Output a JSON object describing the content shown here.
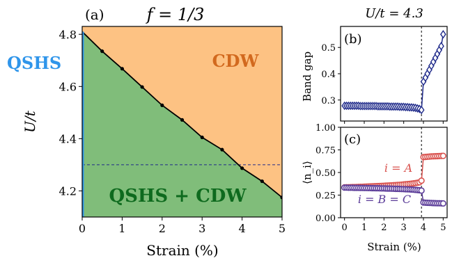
{
  "chart_data": [
    {
      "id": "a",
      "type": "area",
      "panel_label": "(a)",
      "title": "f = 1/3",
      "xlabel": "Strain (%)",
      "ylabel": "U/t",
      "xlim": [
        0,
        5
      ],
      "ylim": [
        4.1,
        4.83
      ],
      "x_ticks": [
        "0",
        "1",
        "2",
        "3",
        "4",
        "5"
      ],
      "y_ticks": [
        "4.2",
        "4.4",
        "4.6",
        "4.8"
      ],
      "boundary": {
        "x": [
          0,
          0.5,
          1.0,
          1.5,
          2.0,
          2.5,
          3.0,
          3.5,
          4.0,
          4.5,
          5.0
        ],
        "y": [
          4.81,
          4.735,
          4.668,
          4.598,
          4.528,
          4.472,
          4.405,
          4.358,
          4.287,
          4.237,
          4.175
        ]
      },
      "reference_line_y": 4.3,
      "qshs_edge": {
        "x": 0,
        "y_range": [
          4.1,
          4.81
        ]
      },
      "regions": {
        "upper": "CDW",
        "lower": "QSHS + CDW",
        "edge": "QSHS"
      },
      "colors": {
        "cdw": "#fdc283",
        "mix": "#80bd7a",
        "qshs": "#2f95ea",
        "cdw_text": "#d2691e",
        "mix_text": "#0e6a1e"
      }
    },
    {
      "id": "b",
      "type": "line",
      "panel_label": "(b)",
      "title": "U/t = 4.3",
      "ylabel": "Band gap",
      "xlim": [
        -0.2,
        5.2
      ],
      "ylim": [
        0.22,
        0.58
      ],
      "y_ticks": [
        "0.3",
        "0.4",
        "0.5"
      ],
      "transition_x": 3.9,
      "series": [
        {
          "x": [
            0,
            0.1,
            0.2,
            0.3,
            0.4,
            0.5,
            0.6,
            0.7,
            0.8,
            0.9,
            1.0,
            1.1,
            1.2,
            1.3,
            1.4,
            1.5,
            1.6,
            1.7,
            1.8,
            1.9,
            2.0,
            2.1,
            2.2,
            2.3,
            2.4,
            2.5,
            2.6,
            2.7,
            2.8,
            2.9,
            3.0,
            3.1,
            3.2,
            3.3,
            3.4,
            3.5,
            3.6,
            3.7,
            3.8,
            3.9,
            4.0,
            4.1,
            4.2,
            4.3,
            4.4,
            4.5,
            4.6,
            4.7,
            4.8,
            4.9,
            5.0
          ],
          "values": [
            0.278,
            0.278,
            0.278,
            0.278,
            0.278,
            0.278,
            0.278,
            0.278,
            0.277,
            0.277,
            0.277,
            0.277,
            0.277,
            0.277,
            0.277,
            0.277,
            0.277,
            0.276,
            0.276,
            0.276,
            0.276,
            0.276,
            0.276,
            0.275,
            0.275,
            0.275,
            0.275,
            0.275,
            0.274,
            0.274,
            0.274,
            0.273,
            0.273,
            0.272,
            0.272,
            0.271,
            0.27,
            0.268,
            0.266,
            0.262,
            0.37,
            0.385,
            0.4,
            0.415,
            0.43,
            0.445,
            0.46,
            0.475,
            0.49,
            0.505,
            0.55
          ],
          "color": "#1f2a8a"
        }
      ]
    },
    {
      "id": "c",
      "type": "scatter",
      "panel_label": "(c)",
      "xlabel": "Strain (%)",
      "ylabel": "⟨n_i⟩",
      "xlim": [
        -0.2,
        5.2
      ],
      "ylim": [
        0.0,
        1.0
      ],
      "x_ticks": [
        "0",
        "1",
        "2",
        "3",
        "4",
        "5"
      ],
      "y_ticks": [
        "0.00",
        "0.25",
        "0.50",
        "0.75",
        "1.00"
      ],
      "transition_x": 3.9,
      "series": [
        {
          "name": "i = A",
          "x": [
            0,
            0.1,
            0.2,
            0.3,
            0.4,
            0.5,
            0.6,
            0.7,
            0.8,
            0.9,
            1.0,
            1.1,
            1.2,
            1.3,
            1.4,
            1.5,
            1.6,
            1.7,
            1.8,
            1.9,
            2.0,
            2.1,
            2.2,
            2.3,
            2.4,
            2.5,
            2.6,
            2.7,
            2.8,
            2.9,
            3.0,
            3.1,
            3.2,
            3.3,
            3.4,
            3.5,
            3.6,
            3.7,
            3.8,
            3.9,
            4.0,
            4.1,
            4.2,
            4.3,
            4.4,
            4.5,
            4.6,
            4.7,
            4.8,
            4.9,
            5.0
          ],
          "values": [
            0.336,
            0.337,
            0.337,
            0.338,
            0.339,
            0.339,
            0.34,
            0.341,
            0.342,
            0.342,
            0.343,
            0.344,
            0.345,
            0.346,
            0.347,
            0.348,
            0.349,
            0.35,
            0.351,
            0.352,
            0.353,
            0.355,
            0.356,
            0.357,
            0.358,
            0.36,
            0.361,
            0.363,
            0.364,
            0.366,
            0.368,
            0.37,
            0.372,
            0.374,
            0.377,
            0.38,
            0.383,
            0.387,
            0.392,
            0.41,
            0.67,
            0.672,
            0.674,
            0.676,
            0.678,
            0.679,
            0.68,
            0.681,
            0.682,
            0.683,
            0.684
          ],
          "color": "#d9534f"
        },
        {
          "name": "i = B = C",
          "x": [
            0,
            0.1,
            0.2,
            0.3,
            0.4,
            0.5,
            0.6,
            0.7,
            0.8,
            0.9,
            1.0,
            1.1,
            1.2,
            1.3,
            1.4,
            1.5,
            1.6,
            1.7,
            1.8,
            1.9,
            2.0,
            2.1,
            2.2,
            2.3,
            2.4,
            2.5,
            2.6,
            2.7,
            2.8,
            2.9,
            3.0,
            3.1,
            3.2,
            3.3,
            3.4,
            3.5,
            3.6,
            3.7,
            3.8,
            3.9,
            4.0,
            4.1,
            4.2,
            4.3,
            4.4,
            4.5,
            4.6,
            4.7,
            4.8,
            4.9,
            5.0
          ],
          "values": [
            0.333,
            0.333,
            0.332,
            0.332,
            0.332,
            0.331,
            0.331,
            0.331,
            0.33,
            0.33,
            0.329,
            0.329,
            0.328,
            0.328,
            0.327,
            0.327,
            0.326,
            0.326,
            0.325,
            0.324,
            0.324,
            0.323,
            0.322,
            0.322,
            0.321,
            0.32,
            0.319,
            0.319,
            0.318,
            0.317,
            0.316,
            0.315,
            0.314,
            0.313,
            0.312,
            0.31,
            0.308,
            0.306,
            0.304,
            0.3,
            0.168,
            0.166,
            0.165,
            0.164,
            0.163,
            0.162,
            0.161,
            0.16,
            0.16,
            0.159,
            0.158
          ],
          "color": "#5c3d99"
        }
      ]
    }
  ]
}
